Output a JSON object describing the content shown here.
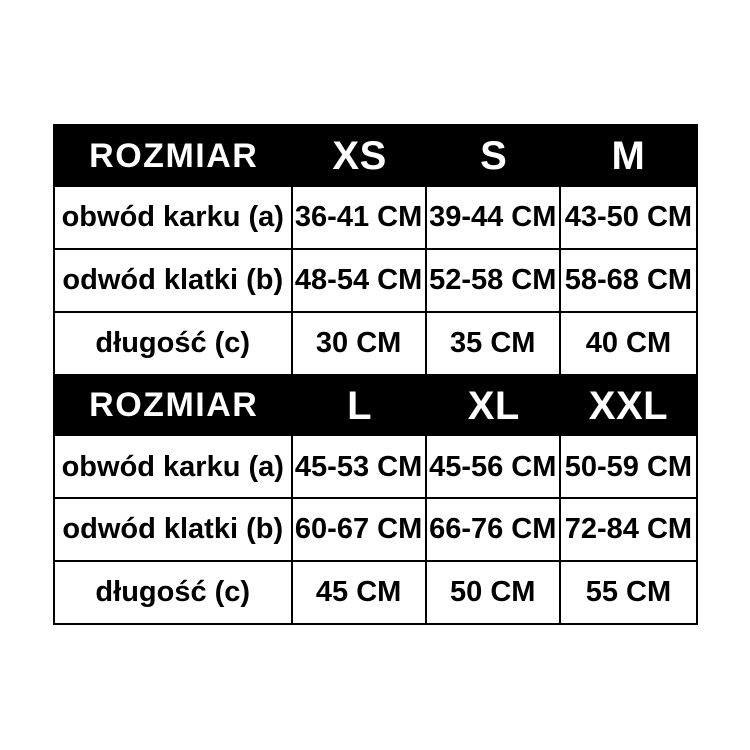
{
  "page": {
    "background_color": "#ffffff",
    "table_border_color": "#000000",
    "header_bg_color": "#000000",
    "header_text_color": "#ffffff",
    "body_text_color": "#000000"
  },
  "table": {
    "sections": [
      {
        "header": {
          "label": "ROZMIAR",
          "sizes": [
            "XS",
            "S",
            "M"
          ]
        },
        "rows": [
          {
            "label": "obwód karku (a)",
            "values": [
              "36-41 CM",
              "39-44 CM",
              "43-50 CM"
            ]
          },
          {
            "label": "odwód klatki (b)",
            "values": [
              "48-54 CM",
              "52-58 CM",
              "58-68 CM"
            ]
          },
          {
            "label": "długość (c)",
            "values": [
              "30 CM",
              "35 CM",
              "40 CM"
            ]
          }
        ]
      },
      {
        "header": {
          "label": "ROZMIAR",
          "sizes": [
            "L",
            "XL",
            "XXL"
          ]
        },
        "rows": [
          {
            "label": "obwód karku (a)",
            "values": [
              "45-53 CM",
              "45-56 CM",
              "50-59 CM"
            ]
          },
          {
            "label": "odwód klatki (b)",
            "values": [
              "60-67 CM",
              "66-76 CM",
              "72-84 CM"
            ]
          },
          {
            "label": "długość (c)",
            "values": [
              "45 CM",
              "50 CM",
              "55 CM"
            ]
          }
        ]
      }
    ]
  }
}
